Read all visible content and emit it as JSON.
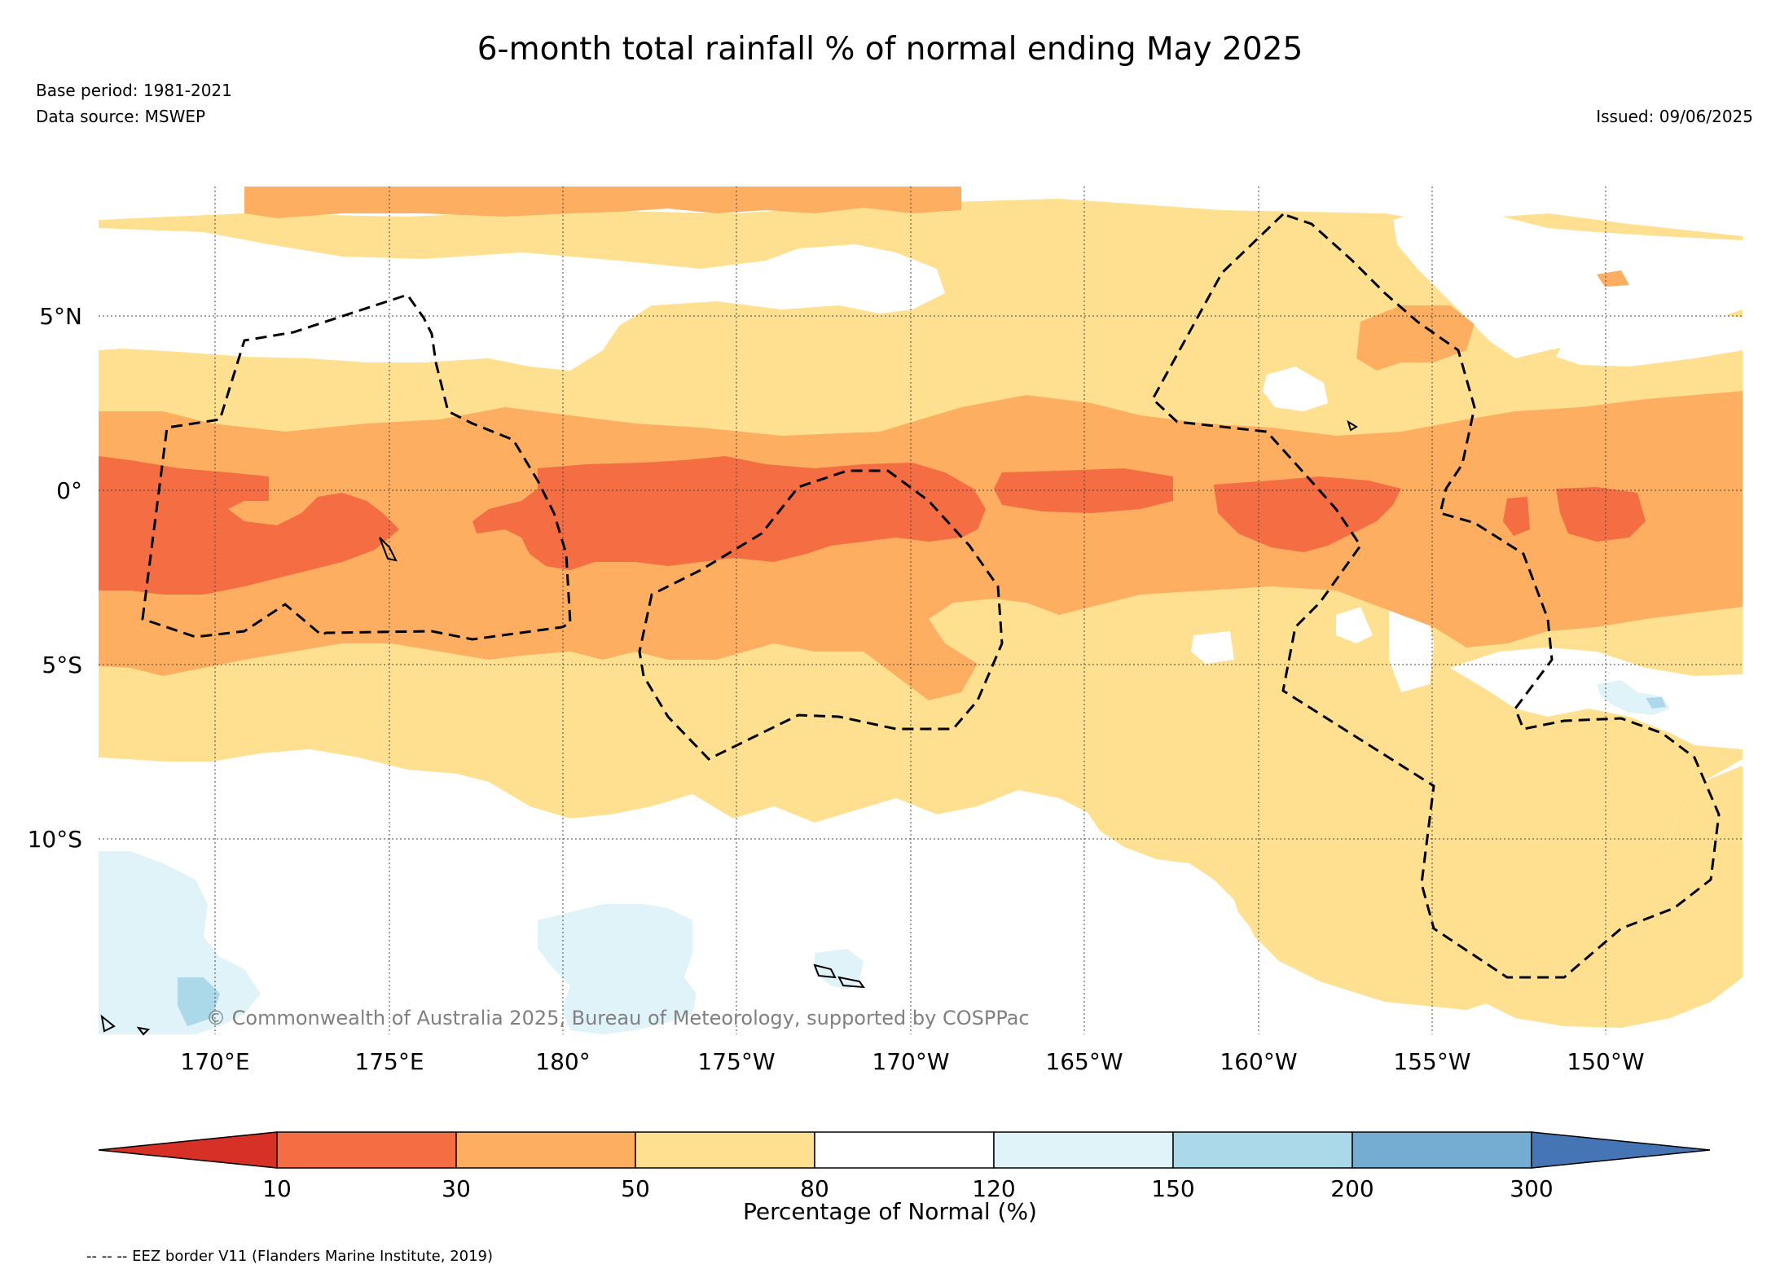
{
  "header": {
    "title": "6-month total rainfall % of normal ending May 2025",
    "base_period": "Base period: 1981-2021",
    "data_source": "Data source: MSWEP",
    "issued": "Issued: 09/06/2025"
  },
  "map": {
    "lat_labels": [
      "5°N",
      "0°",
      "5°S",
      "10°S"
    ],
    "lon_labels": [
      "170°E",
      "175°E",
      "180°",
      "175°W",
      "170°W",
      "165°W",
      "160°W",
      "155°W",
      "150°W"
    ],
    "copyright": "© Commonwealth of Australia 2025, Bureau of Meteorology, supported by COSPPac"
  },
  "colorbar": {
    "label": "Percentage of Normal (%)",
    "ticks": [
      "10",
      "30",
      "50",
      "80",
      "120",
      "150",
      "200",
      "300"
    ],
    "colors": {
      "lt10": "#d73027",
      "b10_30": "#f46d43",
      "b30_50": "#fdae61",
      "b50_80": "#fee090",
      "b80_120": "#ffffff",
      "b120_150": "#e0f3f8",
      "b150_200": "#abd9e9",
      "b200_300": "#74add1",
      "gt300": "#4575b4"
    }
  },
  "legend": {
    "eez": "-- -- -- EEZ border V11 (Flanders Marine Institute, 2019)"
  }
}
